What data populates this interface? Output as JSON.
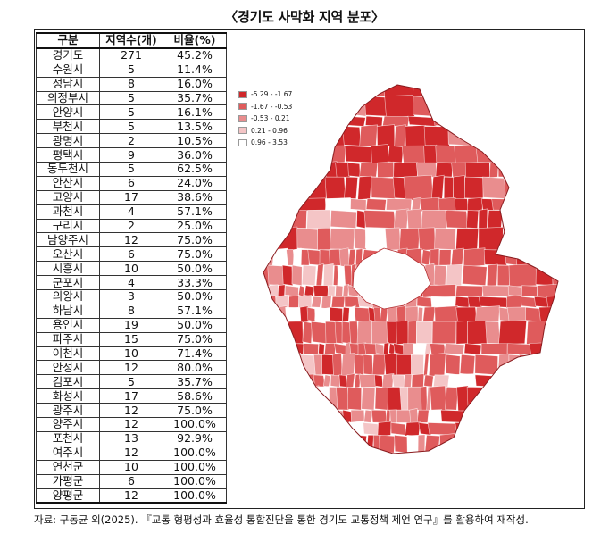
{
  "title": "〈경기도 사막화 지역 분포〉",
  "source": "자료: 구동균 외(2025). 『교통 형평성과 효율성 통합진단을 통한 경기도 교통정책 제언 연구』를 활용하여 재작성.",
  "chart_data": [
    {
      "type": "table",
      "columns": [
        "구분",
        "지역수(개)",
        "비율(%)"
      ],
      "rows": [
        [
          "경기도",
          "271",
          "45.2%"
        ],
        [
          "수원시",
          "5",
          "11.4%"
        ],
        [
          "성남시",
          "8",
          "16.0%"
        ],
        [
          "의정부시",
          "5",
          "35.7%"
        ],
        [
          "안양시",
          "5",
          "16.1%"
        ],
        [
          "부천시",
          "5",
          "13.5%"
        ],
        [
          "광명시",
          "2",
          "10.5%"
        ],
        [
          "평택시",
          "9",
          "36.0%"
        ],
        [
          "동두천시",
          "5",
          "62.5%"
        ],
        [
          "안산시",
          "6",
          "24.0%"
        ],
        [
          "고양시",
          "17",
          "38.6%"
        ],
        [
          "과천시",
          "4",
          "57.1%"
        ],
        [
          "구리시",
          "2",
          "25.0%"
        ],
        [
          "남양주시",
          "12",
          "75.0%"
        ],
        [
          "오산시",
          "6",
          "75.0%"
        ],
        [
          "시흥시",
          "10",
          "50.0%"
        ],
        [
          "군포시",
          "4",
          "33.3%"
        ],
        [
          "의왕시",
          "3",
          "50.0%"
        ],
        [
          "하남시",
          "8",
          "57.1%"
        ],
        [
          "용인시",
          "19",
          "50.0%"
        ],
        [
          "파주시",
          "15",
          "75.0%"
        ],
        [
          "이천시",
          "10",
          "71.4%"
        ],
        [
          "안성시",
          "12",
          "80.0%"
        ],
        [
          "김포시",
          "5",
          "35.7%"
        ],
        [
          "화성시",
          "17",
          "58.6%"
        ],
        [
          "광주시",
          "12",
          "75.0%"
        ],
        [
          "양주시",
          "12",
          "100.0%"
        ],
        [
          "포천시",
          "13",
          "92.9%"
        ],
        [
          "여주시",
          "12",
          "100.0%"
        ],
        [
          "연천군",
          "10",
          "100.0%"
        ],
        [
          "가평군",
          "6",
          "100.0%"
        ],
        [
          "양평군",
          "12",
          "100.0%"
        ]
      ]
    },
    {
      "type": "heatmap",
      "legend_position": "top-left",
      "legend": [
        {
          "label": "-5.29 - -1.67",
          "color": "#d0282b"
        },
        {
          "label": "-1.67 - -0.53",
          "color": "#df5b5c"
        },
        {
          "label": "-0.53 - 0.21",
          "color": "#e98d8e"
        },
        {
          "label": "0.21 - 0.96",
          "color": "#f4c5c6"
        },
        {
          "label": "0.96 - 3.53",
          "color": "#ffffff"
        }
      ]
    }
  ]
}
